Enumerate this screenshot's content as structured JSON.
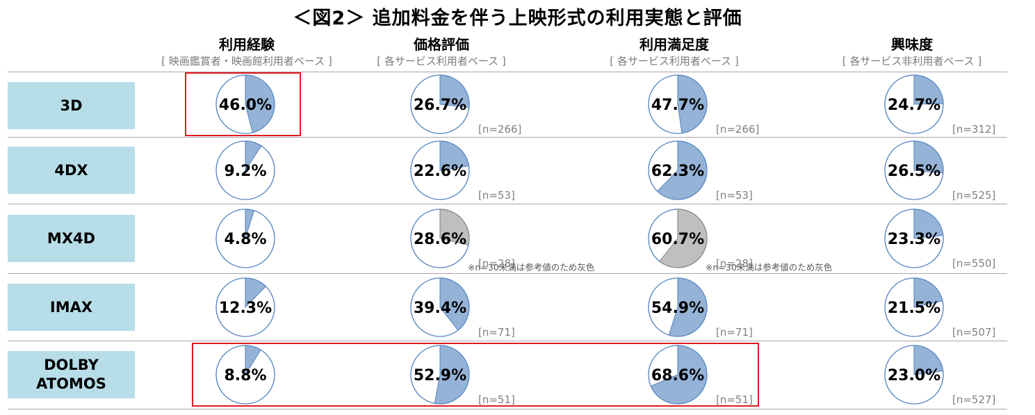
{
  "title": "＜図2＞  追加料金を伴う上映形式の利用実態と評価",
  "columns": [
    {
      "name": "利用経験",
      "base": "[ 映画鑑賞者・映画館利用者ベース ]"
    },
    {
      "name": "価格評価",
      "base": "[ 各サービス利用者ベース ]"
    },
    {
      "name": "利用満足度",
      "base": "[ 各サービス利用者ベース ]"
    },
    {
      "name": "興味度",
      "base": "[ 各サービス非利用者ベース ]"
    }
  ],
  "rows": [
    {
      "label": "3D"
    },
    {
      "label": "4DX"
    },
    {
      "label": "MX4D"
    },
    {
      "label": "IMAX"
    },
    {
      "label": "DOLBY\nATOMOS"
    }
  ],
  "note": "※n=30未満は参考値のため灰色",
  "colors": {
    "filled": "#95b3d7",
    "reference": "#bfbfbf",
    "outline": "#4f81bd",
    "label_bg": "#b7dee8",
    "highlight": "#e0191f"
  },
  "chart_data": {
    "type": "pie",
    "title": "＜図2＞  追加料金を伴う上映形式の利用実態と評価",
    "columns": [
      "利用経験",
      "価格評価",
      "利用満足度",
      "興味度"
    ],
    "categories": [
      "3D",
      "4DX",
      "MX4D",
      "IMAX",
      "DOLBY ATOMOS"
    ],
    "cells": [
      [
        {
          "value": 46.0,
          "label": "46.0%",
          "n": null,
          "reference": false
        },
        {
          "value": 26.7,
          "label": "26.7%",
          "n": "[n=266]",
          "reference": false
        },
        {
          "value": 47.7,
          "label": "47.7%",
          "n": "[n=266]",
          "reference": false
        },
        {
          "value": 24.7,
          "label": "24.7%",
          "n": "[n=312]",
          "reference": false
        }
      ],
      [
        {
          "value": 9.2,
          "label": "9.2%",
          "n": null,
          "reference": false
        },
        {
          "value": 22.6,
          "label": "22.6%",
          "n": "[n=53]",
          "reference": false
        },
        {
          "value": 62.3,
          "label": "62.3%",
          "n": "[n=53]",
          "reference": false
        },
        {
          "value": 26.5,
          "label": "26.5%",
          "n": "[n=525]",
          "reference": false
        }
      ],
      [
        {
          "value": 4.8,
          "label": "4.8%",
          "n": null,
          "reference": false
        },
        {
          "value": 28.6,
          "label": "28.6%",
          "n": "[n=28]",
          "reference": true
        },
        {
          "value": 60.7,
          "label": "60.7%",
          "n": "[n=28]",
          "reference": true
        },
        {
          "value": 23.3,
          "label": "23.3%",
          "n": "[n=550]",
          "reference": false
        }
      ],
      [
        {
          "value": 12.3,
          "label": "12.3%",
          "n": null,
          "reference": false
        },
        {
          "value": 39.4,
          "label": "39.4%",
          "n": "[n=71]",
          "reference": false
        },
        {
          "value": 54.9,
          "label": "54.9%",
          "n": "[n=71]",
          "reference": false
        },
        {
          "value": 21.5,
          "label": "21.5%",
          "n": "[n=507]",
          "reference": false
        }
      ],
      [
        {
          "value": 8.8,
          "label": "8.8%",
          "n": null,
          "reference": false
        },
        {
          "value": 52.9,
          "label": "52.9%",
          "n": "[n=51]",
          "reference": false
        },
        {
          "value": 68.6,
          "label": "68.6%",
          "n": "[n=51]",
          "reference": false
        },
        {
          "value": 23.0,
          "label": "23.0%",
          "n": "[n=527]",
          "reference": false
        }
      ]
    ]
  }
}
